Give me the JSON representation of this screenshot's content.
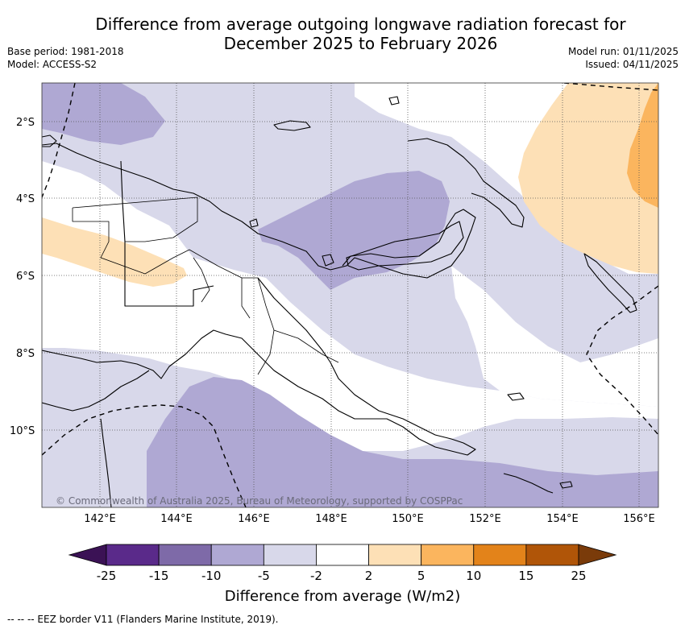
{
  "title_line1": "Difference from average outgoing longwave radiation forecast for",
  "title_line2": "December 2025 to February 2026",
  "base_period": "Base period: 1981-2018",
  "model": "Model: ACCESS-S2",
  "model_run": "Model run: 01/11/2025",
  "issued": "Issued: 04/11/2025",
  "credit": "© Commonwealth of Australia 2025, Bureau of Meteorology, supported by COSPPac",
  "lat_labels": [
    "2°S",
    "4°S",
    "6°S",
    "8°S",
    "10°S"
  ],
  "lon_labels": [
    "142°E",
    "144°E",
    "146°E",
    "148°E",
    "150°E",
    "152°E",
    "154°E",
    "156°E"
  ],
  "colorbar": {
    "title": "Difference from average (W/m2)",
    "ticks": [
      "-25",
      "-15",
      "-10",
      "-5",
      "-2",
      "2",
      "5",
      "10",
      "15",
      "25"
    ],
    "colors": [
      "#3b1255",
      "#5a2a8a",
      "#7e6aa8",
      "#afa8d3",
      "#d8d8ea",
      "#ffffff",
      "#fde0b6",
      "#fbb55e",
      "#e3831a",
      "#b05508",
      "#7a3b0a"
    ]
  },
  "footer": "--  --  -- EEZ border V11 (Flanders Marine Institute, 2019)."
}
